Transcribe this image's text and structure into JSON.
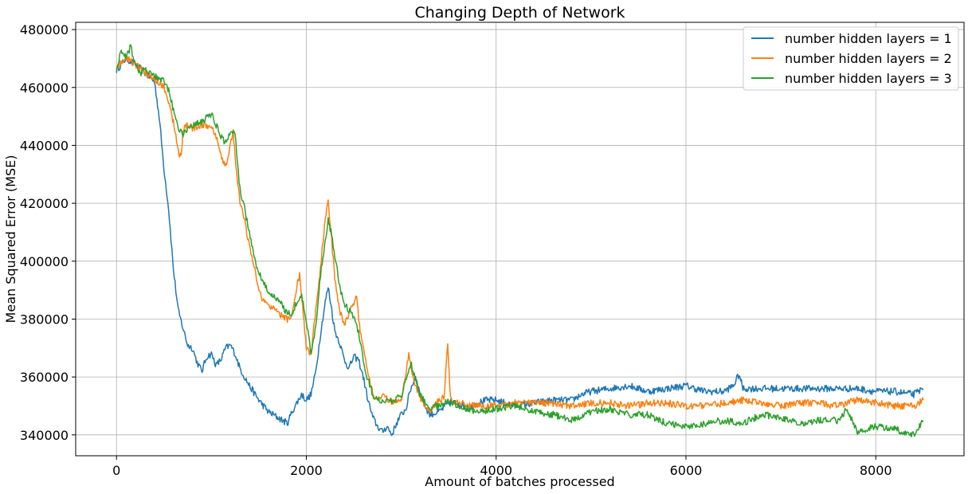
{
  "chart_data": {
    "type": "line",
    "title": "Changing Depth of Network",
    "xlabel": "Amount of batches processed",
    "ylabel": "Mean Squared Error (MSE)",
    "xlim": [
      -430,
      8930
    ],
    "ylim": [
      332800,
      482500
    ],
    "xticks": [
      0,
      2000,
      4000,
      6000,
      8000
    ],
    "yticks": [
      340000,
      360000,
      380000,
      400000,
      420000,
      440000,
      460000,
      480000
    ],
    "xtick_labels": [
      "0",
      "2000",
      "4000",
      "6000",
      "8000"
    ],
    "ytick_labels": [
      "340000",
      "360000",
      "380000",
      "400000",
      "420000",
      "440000",
      "460000",
      "480000"
    ],
    "grid": true,
    "legend_position": "top-right",
    "series": [
      {
        "name": "number hidden layers = 1",
        "color": "#1f77b4",
        "x": [
          0,
          100,
          200,
          300,
          400,
          450,
          500,
          550,
          600,
          650,
          700,
          750,
          800,
          850,
          900,
          950,
          1000,
          1050,
          1100,
          1150,
          1200,
          1250,
          1300,
          1350,
          1400,
          1500,
          1600,
          1700,
          1800,
          1850,
          1900,
          1950,
          2000,
          2050,
          2100,
          2150,
          2200,
          2230,
          2260,
          2300,
          2350,
          2400,
          2450,
          2500,
          2550,
          2600,
          2650,
          2700,
          2750,
          2800,
          2850,
          2900,
          2950,
          3000,
          3050,
          3100,
          3150,
          3200,
          3250,
          3300,
          3400,
          3500,
          3600,
          3700,
          3800,
          3900,
          4000,
          4200,
          4400,
          4600,
          4800,
          4900,
          5000,
          5200,
          5400,
          5600,
          5800,
          6000,
          6200,
          6400,
          6500,
          6560,
          6600,
          6800,
          7000,
          7200,
          7400,
          7600,
          7800,
          8000,
          8200,
          8400,
          8500
        ],
        "values": [
          466000,
          470000,
          468000,
          465000,
          462000,
          450000,
          432000,
          418000,
          397000,
          383000,
          377000,
          371000,
          370000,
          365000,
          362000,
          367000,
          368000,
          364000,
          366000,
          370000,
          371000,
          368000,
          363000,
          360000,
          357000,
          352000,
          348000,
          346000,
          344000,
          348000,
          351000,
          354000,
          352000,
          354000,
          362000,
          375000,
          386000,
          391000,
          385000,
          376000,
          372000,
          366000,
          363000,
          367000,
          366000,
          360000,
          352000,
          346000,
          343000,
          341000,
          343000,
          340000,
          344000,
          347000,
          349000,
          356000,
          360000,
          354000,
          350000,
          347000,
          348000,
          351000,
          351000,
          349000,
          351000,
          352000,
          352000,
          350000,
          351000,
          352000,
          352000,
          354000,
          355000,
          356000,
          357000,
          355000,
          356000,
          357000,
          355000,
          355000,
          357000,
          361000,
          356000,
          356000,
          356000,
          356000,
          356000,
          356000,
          356000,
          355000,
          355000,
          354000,
          356000
        ]
      },
      {
        "name": "number hidden layers = 2",
        "color": "#ff7f0e",
        "x": [
          0,
          100,
          200,
          300,
          400,
          500,
          550,
          600,
          650,
          680,
          700,
          750,
          800,
          900,
          1000,
          1050,
          1100,
          1150,
          1200,
          1230,
          1250,
          1300,
          1350,
          1400,
          1450,
          1500,
          1550,
          1600,
          1700,
          1800,
          1850,
          1900,
          1930,
          1960,
          2000,
          2050,
          2100,
          2150,
          2200,
          2230,
          2260,
          2300,
          2350,
          2400,
          2450,
          2500,
          2530,
          2560,
          2600,
          2650,
          2700,
          2750,
          2800,
          2900,
          3000,
          3080,
          3120,
          3200,
          3300,
          3400,
          3450,
          3490,
          3520,
          3600,
          3800,
          4000,
          4200,
          4400,
          4600,
          4800,
          5000,
          5200,
          5400,
          5600,
          5800,
          6000,
          6200,
          6400,
          6600,
          6800,
          7000,
          7200,
          7400,
          7600,
          7800,
          8000,
          8200,
          8400,
          8500
        ],
        "values": [
          467000,
          470000,
          468000,
          465000,
          463000,
          460000,
          455000,
          448000,
          438000,
          436000,
          445000,
          447000,
          446000,
          447000,
          446000,
          443000,
          436000,
          433000,
          440000,
          445000,
          436000,
          420000,
          414000,
          405000,
          398000,
          390000,
          386000,
          385000,
          382000,
          380000,
          381000,
          392000,
          395000,
          385000,
          370000,
          368000,
          383000,
          398000,
          415000,
          421000,
          410000,
          394000,
          383000,
          378000,
          382000,
          386000,
          388000,
          378000,
          370000,
          362000,
          354000,
          352000,
          354000,
          351000,
          352000,
          368000,
          360000,
          353000,
          348000,
          352000,
          353000,
          371000,
          352000,
          351000,
          350000,
          350000,
          351000,
          351000,
          351000,
          350000,
          351000,
          351000,
          350000,
          351000,
          351000,
          350000,
          350000,
          351000,
          352000,
          351000,
          350000,
          351000,
          351000,
          350000,
          352000,
          351000,
          350000,
          350000,
          352000
        ]
      },
      {
        "name": "number hidden layers = 3",
        "color": "#2ca02c",
        "x": [
          0,
          50,
          100,
          150,
          200,
          250,
          300,
          400,
          500,
          550,
          600,
          650,
          700,
          750,
          800,
          900,
          1000,
          1050,
          1100,
          1150,
          1200,
          1250,
          1300,
          1350,
          1400,
          1450,
          1500,
          1600,
          1700,
          1800,
          1850,
          1900,
          1950,
          2000,
          2050,
          2100,
          2150,
          2200,
          2230,
          2260,
          2300,
          2350,
          2400,
          2450,
          2500,
          2550,
          2600,
          2650,
          2700,
          2800,
          2900,
          3000,
          3100,
          3200,
          3300,
          3400,
          3500,
          3600,
          3800,
          4000,
          4200,
          4400,
          4600,
          4800,
          5000,
          5200,
          5400,
          5600,
          5800,
          6000,
          6200,
          6400,
          6600,
          6800,
          7000,
          7200,
          7400,
          7600,
          7700,
          7800,
          8000,
          8200,
          8400,
          8500
        ],
        "values": [
          467000,
          472000,
          471000,
          474000,
          468000,
          465000,
          466000,
          464000,
          462000,
          459000,
          452000,
          446000,
          444000,
          446000,
          447000,
          448000,
          451000,
          447000,
          443000,
          441000,
          444000,
          444000,
          425000,
          418000,
          410000,
          401000,
          396000,
          389000,
          387000,
          382000,
          382000,
          386000,
          388000,
          380000,
          368000,
          377000,
          395000,
          407000,
          414000,
          410000,
          402000,
          392000,
          385000,
          383000,
          381000,
          375000,
          366000,
          359000,
          354000,
          351000,
          352000,
          353000,
          365000,
          354000,
          349000,
          350000,
          352000,
          350000,
          348000,
          349000,
          350000,
          348000,
          347000,
          345000,
          348000,
          349000,
          347000,
          347000,
          344000,
          343000,
          344000,
          345000,
          344000,
          347000,
          346000,
          344000,
          345000,
          345000,
          349000,
          341000,
          343000,
          342000,
          340000,
          345000
        ]
      }
    ]
  }
}
